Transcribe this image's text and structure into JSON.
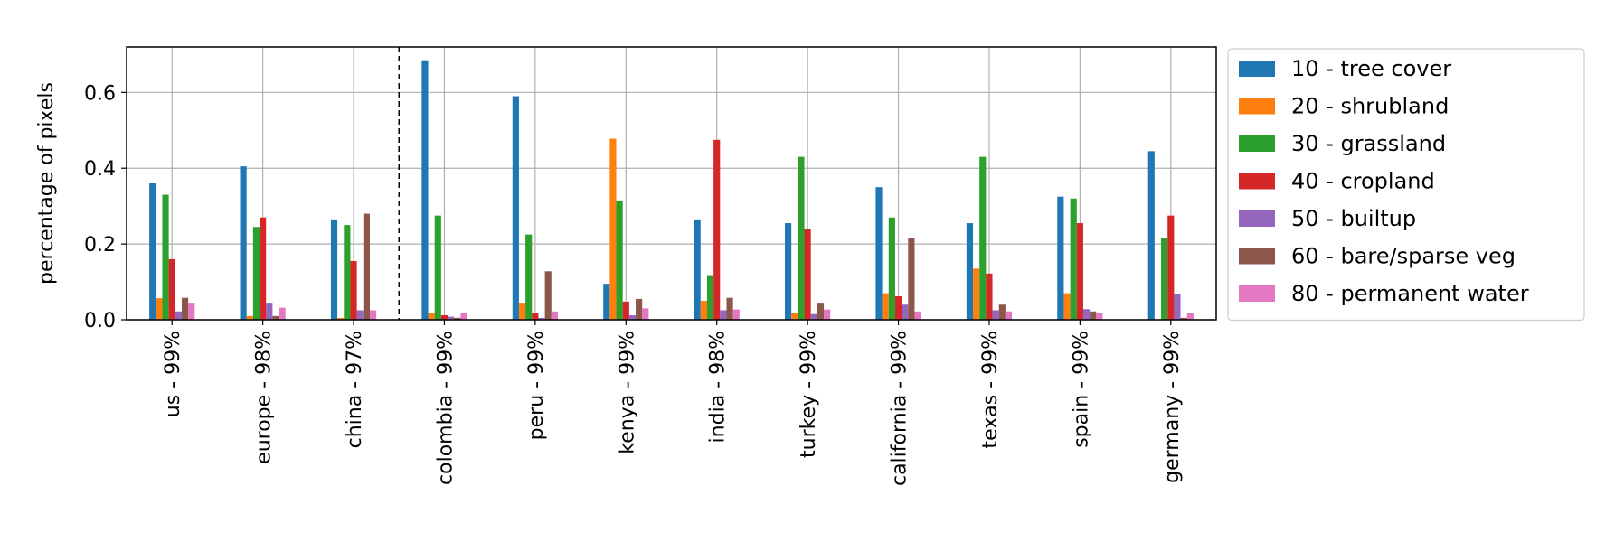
{
  "chart_data": {
    "type": "bar",
    "title": "",
    "xlabel": "",
    "ylabel": "percentage of pixels",
    "ylim": [
      0,
      0.72
    ],
    "yticks": [
      "0.0",
      "0.2",
      "0.4",
      "0.6"
    ],
    "grid": true,
    "legend_position": "outside-right",
    "divider_after_category_index": 2,
    "categories": [
      "us - 99%",
      "europe - 98%",
      "china - 97%",
      "colombia - 99%",
      "peru - 99%",
      "kenya - 99%",
      "india - 98%",
      "turkey - 99%",
      "california - 99%",
      "texas - 99%",
      "spain - 99%",
      "germany - 99%"
    ],
    "series": [
      {
        "name": "10 - tree cover",
        "color": "#1f77b4",
        "values": [
          0.36,
          0.405,
          0.265,
          0.685,
          0.59,
          0.095,
          0.265,
          0.255,
          0.35,
          0.255,
          0.325,
          0.445
        ]
      },
      {
        "name": "20 - shrubland",
        "color": "#ff7f0e",
        "values": [
          0.057,
          0.01,
          0.005,
          0.017,
          0.045,
          0.478,
          0.05,
          0.017,
          0.07,
          0.135,
          0.07,
          0.0
        ]
      },
      {
        "name": "30 - grassland",
        "color": "#2ca02c",
        "values": [
          0.33,
          0.245,
          0.25,
          0.275,
          0.225,
          0.315,
          0.118,
          0.43,
          0.27,
          0.43,
          0.32,
          0.215
        ]
      },
      {
        "name": "40 - cropland",
        "color": "#d62728",
        "values": [
          0.16,
          0.27,
          0.155,
          0.012,
          0.017,
          0.048,
          0.475,
          0.24,
          0.062,
          0.122,
          0.255,
          0.275
        ]
      },
      {
        "name": "50 - builtup",
        "color": "#9467bd",
        "values": [
          0.022,
          0.045,
          0.025,
          0.008,
          0.005,
          0.012,
          0.025,
          0.015,
          0.04,
          0.025,
          0.028,
          0.068
        ]
      },
      {
        "name": "60 - bare/sparse veg",
        "color": "#8c564b",
        "values": [
          0.058,
          0.01,
          0.28,
          0.005,
          0.128,
          0.055,
          0.058,
          0.045,
          0.215,
          0.04,
          0.022,
          0.005
        ]
      },
      {
        "name": "80 - permanent water",
        "color": "#e377c2",
        "values": [
          0.045,
          0.032,
          0.025,
          0.018,
          0.022,
          0.03,
          0.027,
          0.027,
          0.022,
          0.022,
          0.018,
          0.018
        ]
      }
    ]
  }
}
